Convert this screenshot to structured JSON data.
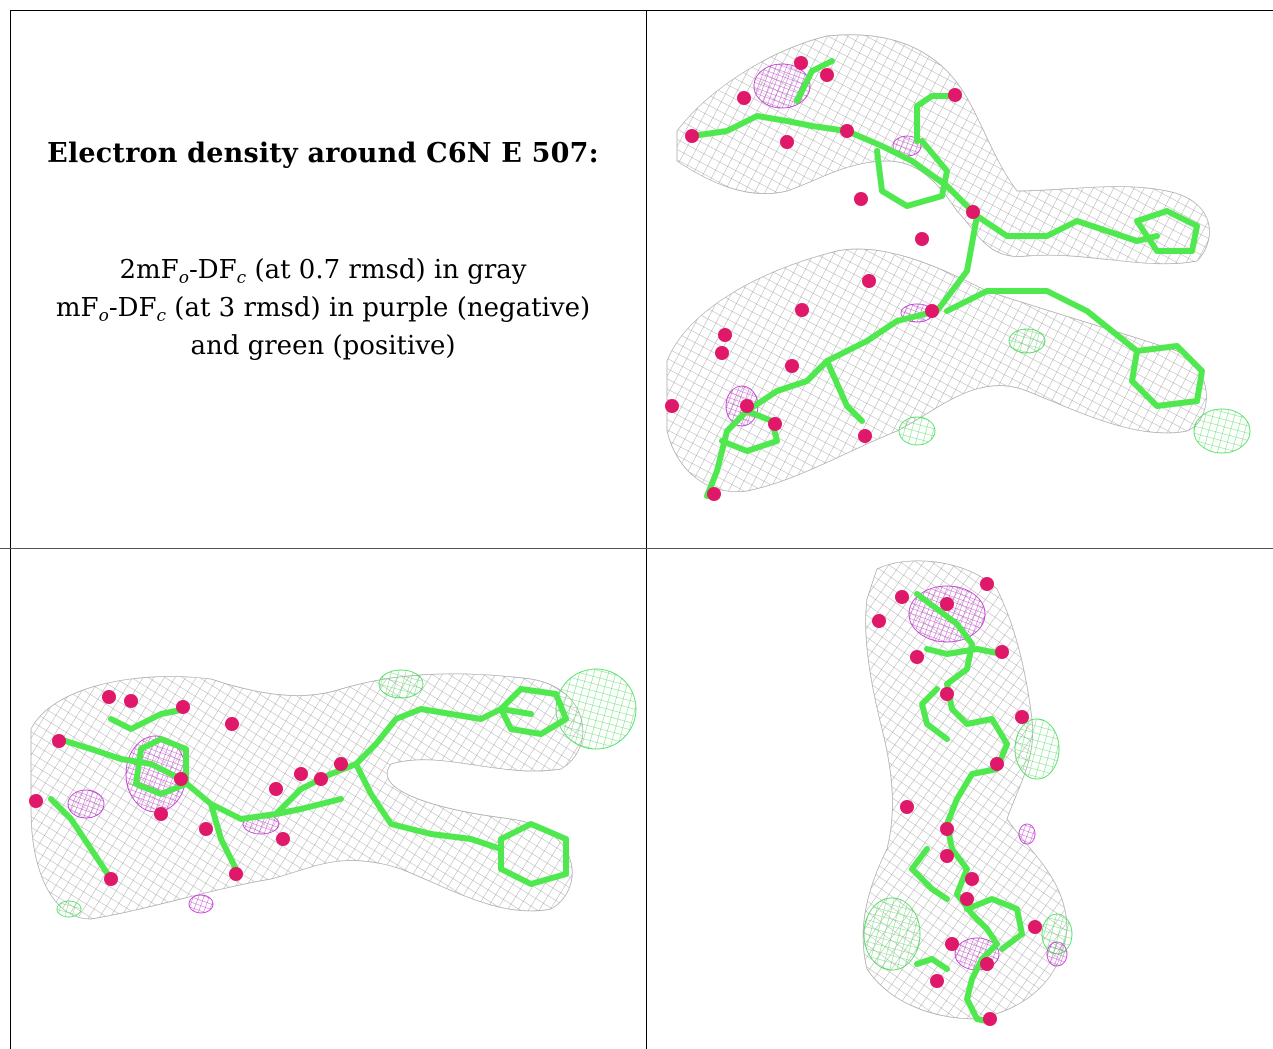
{
  "caption": {
    "title": "Electron density around C6N E 507:",
    "line1_prefix": "2mF",
    "line1_sub1": "o",
    "line1_mid": "-DF",
    "line1_sub2": "c",
    "line1_suffix": " (at 0.7 rmsd) in gray",
    "line2_prefix": "mF",
    "line2_sub1": "o",
    "line2_mid": "-DF",
    "line2_sub2": "c",
    "line2_suffix": " (at 3 rmsd) in purple (negative)",
    "line3": "and green (positive)"
  },
  "colors": {
    "mesh_2fofc": "#9a9a9a",
    "mesh_negative": "#c02ed0",
    "mesh_positive": "#44dd55",
    "bonds": "#4fe84f",
    "oxygen_atoms": "#e0186a"
  },
  "panels": {
    "top_right": "molecule-view-1",
    "bottom_left": "molecule-view-2",
    "bottom_right": "molecule-view-3"
  }
}
